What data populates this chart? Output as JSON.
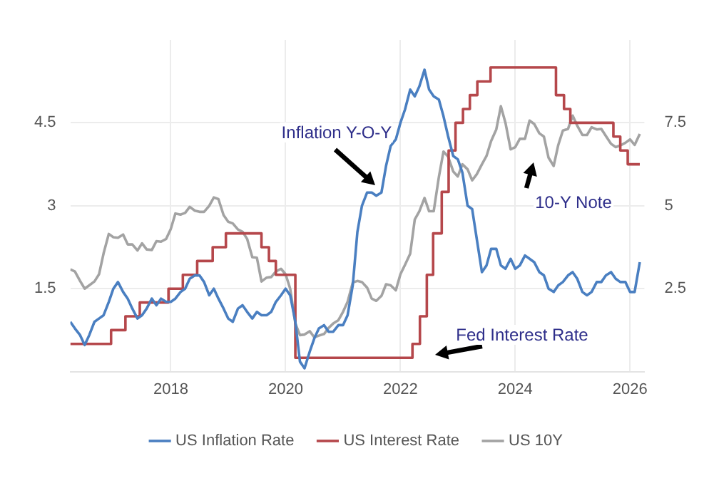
{
  "chart_data": {
    "type": "line",
    "xlim": [
      2016.25,
      2026.25
    ],
    "xticks": [
      2018,
      2020,
      2022,
      2024,
      2026
    ],
    "ylim": [
      0,
      6
    ],
    "yticks": [
      1.5,
      3,
      4.5
    ],
    "y2lim": [
      0,
      10
    ],
    "y2ticks": [
      2.5,
      5,
      7.5
    ],
    "grid": true,
    "legend": "bottom",
    "annotations": [
      "Inflation Y-O-Y",
      "10-Y Note",
      "Fed Interest Rate"
    ],
    "series": [
      {
        "name": "US Inflation Rate",
        "color": "#4a7fc1",
        "axis": "y2",
        "type": "line",
        "x": [
          2016.25,
          2016.33,
          2016.42,
          2016.5,
          2016.58,
          2016.67,
          2016.75,
          2016.83,
          2016.92,
          2017,
          2017.08,
          2017.17,
          2017.25,
          2017.33,
          2017.42,
          2017.5,
          2017.58,
          2017.67,
          2017.75,
          2017.83,
          2017.92,
          2018,
          2018.08,
          2018.17,
          2018.25,
          2018.33,
          2018.42,
          2018.5,
          2018.58,
          2018.67,
          2018.75,
          2018.83,
          2018.92,
          2019,
          2019.08,
          2019.17,
          2019.25,
          2019.33,
          2019.42,
          2019.5,
          2019.58,
          2019.67,
          2019.75,
          2019.83,
          2019.92,
          2020,
          2020.08,
          2020.17,
          2020.25,
          2020.33,
          2020.42,
          2020.5,
          2020.58,
          2020.67,
          2020.75,
          2020.83,
          2020.92,
          2021,
          2021.08,
          2021.17,
          2021.25,
          2021.33,
          2021.42,
          2021.5,
          2021.58,
          2021.67,
          2021.75,
          2021.83,
          2021.92,
          2022,
          2022.08,
          2022.17,
          2022.25,
          2022.33,
          2022.42,
          2022.5,
          2022.58,
          2022.67,
          2022.75,
          2022.83,
          2022.92,
          2023,
          2023.08,
          2023.17,
          2023.25,
          2023.33,
          2023.42,
          2023.5,
          2023.58,
          2023.67,
          2023.75,
          2023.83,
          2023.92,
          2024,
          2024.08,
          2024.17,
          2024.25,
          2024.33,
          2024.42,
          2024.5,
          2024.58,
          2024.67,
          2024.75,
          2024.83,
          2024.92,
          2025,
          2025.08,
          2025.17,
          2025.25,
          2025.33,
          2025.42,
          2025.5,
          2025.58,
          2025.67,
          2025.75,
          2025.83,
          2025.92,
          2026,
          2026.08,
          2026.17
        ],
        "values": [
          1.5,
          1.3,
          1.1,
          0.8,
          1.1,
          1.5,
          1.6,
          1.7,
          2.1,
          2.5,
          2.7,
          2.4,
          2.2,
          1.9,
          1.6,
          1.7,
          1.9,
          2.2,
          2.0,
          2.2,
          2.1,
          2.1,
          2.2,
          2.4,
          2.5,
          2.8,
          2.9,
          2.9,
          2.7,
          2.3,
          2.5,
          2.2,
          1.9,
          1.6,
          1.5,
          1.9,
          2.0,
          1.8,
          1.6,
          1.8,
          1.7,
          1.7,
          1.8,
          2.1,
          2.3,
          2.5,
          2.3,
          1.5,
          0.3,
          0.1,
          0.6,
          1.0,
          1.3,
          1.4,
          1.2,
          1.2,
          1.4,
          1.4,
          1.7,
          2.6,
          4.2,
          5.0,
          5.4,
          5.4,
          5.3,
          5.4,
          6.2,
          6.8,
          7.0,
          7.5,
          7.9,
          8.5,
          8.3,
          8.6,
          9.1,
          8.5,
          8.3,
          8.2,
          7.7,
          7.1,
          6.5,
          6.4,
          6.0,
          5.0,
          4.9,
          4.0,
          3.0,
          3.2,
          3.7,
          3.7,
          3.2,
          3.1,
          3.4,
          3.1,
          3.2,
          3.5,
          3.4,
          3.3,
          3.0,
          2.9,
          2.5,
          2.4,
          2.6,
          2.7,
          2.9,
          3.0,
          2.8,
          2.4,
          2.3,
          2.4,
          2.7,
          2.7,
          2.9,
          3.0,
          2.8,
          2.7,
          2.7,
          2.4,
          2.4,
          3.3
        ]
      },
      {
        "name": "US Interest Rate",
        "color": "#b5474b",
        "type": "step",
        "x": [
          2016.25,
          2016.96,
          2017.21,
          2017.46,
          2017.96,
          2018.21,
          2018.46,
          2018.73,
          2018.96,
          2019.58,
          2019.71,
          2019.83,
          2020.17,
          2022.21,
          2022.34,
          2022.46,
          2022.57,
          2022.72,
          2022.84,
          2022.96,
          2023.09,
          2023.21,
          2023.34,
          2023.57,
          2024.71,
          2024.85,
          2024.96,
          2025.71,
          2025.83,
          2025.96,
          2026.17
        ],
        "values": [
          0.5,
          0.75,
          1.0,
          1.25,
          1.5,
          1.75,
          2.0,
          2.25,
          2.5,
          2.25,
          2.0,
          1.75,
          0.25,
          0.5,
          1.0,
          1.75,
          2.5,
          3.25,
          4.0,
          4.5,
          4.75,
          5.0,
          5.25,
          5.5,
          5.0,
          4.75,
          4.5,
          4.25,
          4.0,
          3.75,
          3.75
        ]
      },
      {
        "name": "US 10Y",
        "color": "#a3a3a3",
        "type": "line",
        "x": [
          2016.25,
          2016.33,
          2016.42,
          2016.5,
          2016.58,
          2016.67,
          2016.75,
          2016.83,
          2016.92,
          2017,
          2017.08,
          2017.17,
          2017.25,
          2017.33,
          2017.42,
          2017.5,
          2017.58,
          2017.67,
          2017.75,
          2017.83,
          2017.92,
          2018,
          2018.08,
          2018.17,
          2018.25,
          2018.33,
          2018.42,
          2018.5,
          2018.58,
          2018.67,
          2018.75,
          2018.83,
          2018.92,
          2019,
          2019.08,
          2019.17,
          2019.25,
          2019.33,
          2019.42,
          2019.5,
          2019.58,
          2019.67,
          2019.75,
          2019.83,
          2019.92,
          2020,
          2020.08,
          2020.17,
          2020.25,
          2020.33,
          2020.42,
          2020.5,
          2020.58,
          2020.67,
          2020.75,
          2020.83,
          2020.92,
          2021,
          2021.08,
          2021.17,
          2021.25,
          2021.33,
          2021.42,
          2021.5,
          2021.58,
          2021.67,
          2021.75,
          2021.83,
          2021.92,
          2022,
          2022.08,
          2022.17,
          2022.25,
          2022.33,
          2022.42,
          2022.5,
          2022.58,
          2022.67,
          2022.75,
          2022.83,
          2022.92,
          2023,
          2023.08,
          2023.17,
          2023.25,
          2023.33,
          2023.42,
          2023.5,
          2023.58,
          2023.67,
          2023.75,
          2023.83,
          2023.92,
          2024,
          2024.08,
          2024.17,
          2024.25,
          2024.33,
          2024.42,
          2024.5,
          2024.58,
          2024.67,
          2024.75,
          2024.83,
          2024.92,
          2025,
          2025.08,
          2025.17,
          2025.25,
          2025.33,
          2025.42,
          2025.5,
          2025.58,
          2025.67,
          2025.75,
          2025.83,
          2025.92,
          2026,
          2026.08,
          2026.17
        ],
        "values": [
          1.85,
          1.81,
          1.64,
          1.5,
          1.56,
          1.63,
          1.76,
          2.14,
          2.49,
          2.43,
          2.42,
          2.48,
          2.3,
          2.3,
          2.19,
          2.32,
          2.21,
          2.2,
          2.36,
          2.35,
          2.4,
          2.58,
          2.86,
          2.84,
          2.87,
          2.98,
          2.91,
          2.89,
          2.89,
          3.0,
          3.15,
          3.12,
          2.83,
          2.71,
          2.68,
          2.57,
          2.53,
          2.4,
          2.07,
          2.06,
          1.63,
          1.7,
          1.71,
          1.81,
          1.86,
          1.76,
          1.5,
          0.87,
          0.66,
          0.67,
          0.73,
          0.62,
          0.65,
          0.68,
          0.79,
          0.87,
          0.93,
          1.08,
          1.26,
          1.61,
          1.64,
          1.62,
          1.52,
          1.32,
          1.28,
          1.37,
          1.58,
          1.56,
          1.47,
          1.76,
          1.93,
          2.13,
          2.75,
          2.9,
          3.14,
          2.9,
          2.9,
          3.52,
          3.98,
          3.89,
          3.62,
          3.53,
          3.75,
          3.66,
          3.46,
          3.57,
          3.75,
          3.9,
          4.17,
          4.38,
          4.8,
          4.5,
          4.02,
          4.06,
          4.21,
          4.21,
          4.54,
          4.48,
          4.31,
          4.25,
          3.87,
          3.72,
          4.1,
          4.36,
          4.39,
          4.63,
          4.45,
          4.28,
          4.28,
          4.42,
          4.38,
          4.39,
          4.26,
          4.12,
          4.06,
          4.09,
          4.14,
          4.2,
          4.1,
          4.3
        ]
      }
    ]
  }
}
